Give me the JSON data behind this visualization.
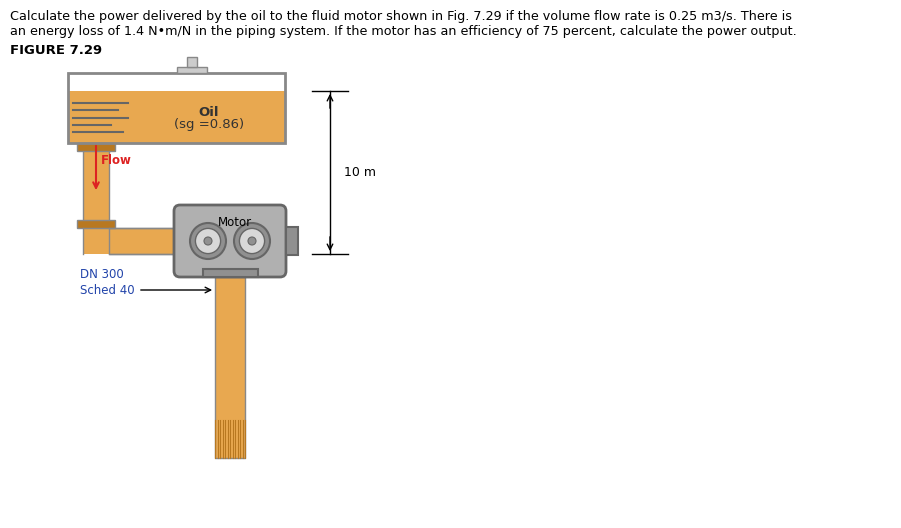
{
  "title_text1": "Calculate the power delivered by the oil to the fluid motor shown in Fig. 7.29 if the volume flow rate is 0.25 m3/s. There is",
  "title_text2": "an energy loss of 1.4 N•m/N in the piping system. If the motor has an efficiency of 75 percent, calculate the power output.",
  "figure_label": "FIGURE 7.29",
  "oil_label": "Oil",
  "sg_label": "(sg =0.86)",
  "flow_label": "Flow",
  "motor_label": "Motor",
  "dn_label": "DN 300",
  "sched_label": "Sched 40",
  "dim_label": "10 m",
  "bg_color": "#ffffff",
  "tank_fill_color": "#E8A850",
  "tank_border_color": "#888888",
  "tank_top_color": "#ffffff",
  "pipe_color": "#E8A850",
  "pipe_border_color": "#888888",
  "pipe_dark_color": "#B87820",
  "motor_body_color": "#b0b0b0",
  "motor_border_color": "#666666",
  "motor_light_color": "#d8d8d8",
  "motor_dark_color": "#909090",
  "flow_arrow_color": "#dd2222",
  "flow_text_color": "#dd2222",
  "label_color": "#2244aa",
  "text_color": "#000000",
  "oil_text_color": "#333333",
  "dim_line_color": "#000000",
  "surface_line_color": "#666666"
}
